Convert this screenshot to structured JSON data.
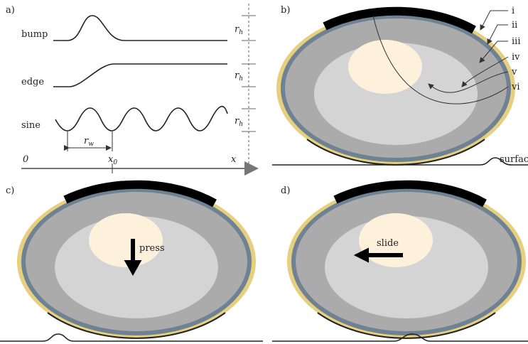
{
  "panel_a": {
    "label": "a)",
    "profiles": [
      {
        "name": "bump",
        "height": {
          "symbol": "r",
          "sub": "h"
        }
      },
      {
        "name": "edge",
        "height": {
          "symbol": "r",
          "sub": "h"
        }
      },
      {
        "name": "sine",
        "height": {
          "symbol": "r",
          "sub": "h"
        }
      }
    ],
    "width": {
      "symbol": "r",
      "sub": "w"
    },
    "axis": {
      "origin": "0",
      "marker": {
        "symbol": "x",
        "sub": "0"
      },
      "end": "x"
    }
  },
  "panel_b": {
    "label": "b)",
    "layers": [
      "i",
      "ii",
      "iii",
      "iv",
      "v",
      "vi"
    ],
    "surface": "surface"
  },
  "panel_c": {
    "label": "c)",
    "action": "press"
  },
  "panel_d": {
    "label": "d)",
    "action": "slide"
  }
}
